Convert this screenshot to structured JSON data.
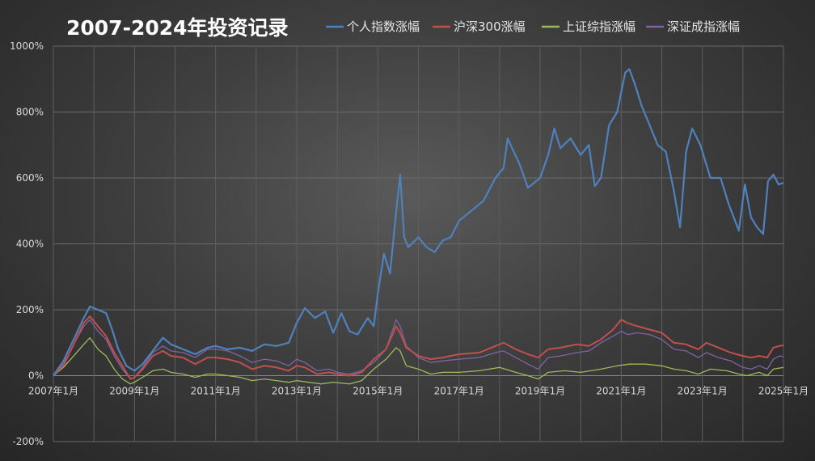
{
  "chart_data": {
    "type": "line",
    "title": "2007-2024年投资记录",
    "xlabel": "",
    "ylabel": "",
    "x_ticks": [
      "2007年1月",
      "2009年1月",
      "2011年1月",
      "2013年1月",
      "2015年1月",
      "2017年1月",
      "2019年1月",
      "2021年1月",
      "2023年1月",
      "2025年1月"
    ],
    "y_ticks": [
      "-200%",
      "0%",
      "200%",
      "400%",
      "600%",
      "800%",
      "1000%"
    ],
    "ylim": [
      -200,
      1000
    ],
    "xlim": [
      2007.0,
      2025.0
    ],
    "grid": true,
    "legend_position": "top",
    "series": [
      {
        "name": "个人指数涨幅",
        "color": "#4f81bd",
        "points": [
          [
            2007.0,
            0
          ],
          [
            2007.25,
            45
          ],
          [
            2007.5,
            110
          ],
          [
            2007.75,
            175
          ],
          [
            2007.9,
            210
          ],
          [
            2008.1,
            200
          ],
          [
            2008.3,
            190
          ],
          [
            2008.45,
            140
          ],
          [
            2008.6,
            80
          ],
          [
            2008.8,
            30
          ],
          [
            2009.0,
            15
          ],
          [
            2009.2,
            35
          ],
          [
            2009.45,
            75
          ],
          [
            2009.7,
            115
          ],
          [
            2009.9,
            95
          ],
          [
            2010.2,
            80
          ],
          [
            2010.5,
            65
          ],
          [
            2010.8,
            85
          ],
          [
            2011.0,
            90
          ],
          [
            2011.3,
            80
          ],
          [
            2011.6,
            85
          ],
          [
            2011.9,
            75
          ],
          [
            2012.2,
            95
          ],
          [
            2012.5,
            90
          ],
          [
            2012.8,
            100
          ],
          [
            2013.0,
            160
          ],
          [
            2013.2,
            205
          ],
          [
            2013.45,
            175
          ],
          [
            2013.7,
            195
          ],
          [
            2013.9,
            130
          ],
          [
            2014.1,
            190
          ],
          [
            2014.3,
            135
          ],
          [
            2014.5,
            125
          ],
          [
            2014.75,
            175
          ],
          [
            2014.9,
            150
          ],
          [
            2015.0,
            250
          ],
          [
            2015.15,
            370
          ],
          [
            2015.3,
            310
          ],
          [
            2015.45,
            495
          ],
          [
            2015.55,
            610
          ],
          [
            2015.65,
            420
          ],
          [
            2015.75,
            390
          ],
          [
            2016.0,
            420
          ],
          [
            2016.2,
            390
          ],
          [
            2016.4,
            375
          ],
          [
            2016.6,
            410
          ],
          [
            2016.8,
            420
          ],
          [
            2017.0,
            470
          ],
          [
            2017.3,
            500
          ],
          [
            2017.6,
            530
          ],
          [
            2017.9,
            600
          ],
          [
            2018.1,
            630
          ],
          [
            2018.2,
            720
          ],
          [
            2018.35,
            680
          ],
          [
            2018.5,
            640
          ],
          [
            2018.7,
            570
          ],
          [
            2019.0,
            600
          ],
          [
            2019.2,
            670
          ],
          [
            2019.35,
            750
          ],
          [
            2019.5,
            690
          ],
          [
            2019.75,
            720
          ],
          [
            2020.0,
            670
          ],
          [
            2020.2,
            700
          ],
          [
            2020.35,
            575
          ],
          [
            2020.5,
            600
          ],
          [
            2020.7,
            760
          ],
          [
            2020.9,
            800
          ],
          [
            2021.1,
            920
          ],
          [
            2021.2,
            930
          ],
          [
            2021.35,
            880
          ],
          [
            2021.5,
            820
          ],
          [
            2021.7,
            760
          ],
          [
            2021.9,
            700
          ],
          [
            2022.1,
            680
          ],
          [
            2022.3,
            560
          ],
          [
            2022.45,
            450
          ],
          [
            2022.6,
            680
          ],
          [
            2022.75,
            750
          ],
          [
            2022.95,
            700
          ],
          [
            2023.2,
            600
          ],
          [
            2023.45,
            600
          ],
          [
            2023.65,
            520
          ],
          [
            2023.9,
            440
          ],
          [
            2024.05,
            580
          ],
          [
            2024.2,
            480
          ],
          [
            2024.35,
            450
          ],
          [
            2024.5,
            430
          ],
          [
            2024.62,
            590
          ],
          [
            2024.75,
            610
          ],
          [
            2024.88,
            580
          ],
          [
            2025.0,
            585
          ]
        ]
      },
      {
        "name": "沪深300涨幅",
        "color": "#c0504d",
        "points": [
          [
            2007.0,
            0
          ],
          [
            2007.25,
            30
          ],
          [
            2007.5,
            95
          ],
          [
            2007.75,
            160
          ],
          [
            2007.9,
            180
          ],
          [
            2008.1,
            150
          ],
          [
            2008.3,
            120
          ],
          [
            2008.5,
            70
          ],
          [
            2008.7,
            30
          ],
          [
            2008.9,
            -10
          ],
          [
            2009.0,
            -5
          ],
          [
            2009.2,
            20
          ],
          [
            2009.45,
            60
          ],
          [
            2009.7,
            75
          ],
          [
            2009.9,
            60
          ],
          [
            2010.2,
            55
          ],
          [
            2010.5,
            35
          ],
          [
            2010.8,
            55
          ],
          [
            2011.0,
            55
          ],
          [
            2011.3,
            50
          ],
          [
            2011.6,
            40
          ],
          [
            2011.9,
            20
          ],
          [
            2012.2,
            30
          ],
          [
            2012.5,
            25
          ],
          [
            2012.8,
            15
          ],
          [
            2013.0,
            30
          ],
          [
            2013.2,
            25
          ],
          [
            2013.5,
            5
          ],
          [
            2013.8,
            10
          ],
          [
            2014.0,
            5
          ],
          [
            2014.3,
            0
          ],
          [
            2014.6,
            10
          ],
          [
            2014.9,
            50
          ],
          [
            2015.2,
            80
          ],
          [
            2015.45,
            150
          ],
          [
            2015.55,
            130
          ],
          [
            2015.7,
            85
          ],
          [
            2016.0,
            60
          ],
          [
            2016.3,
            50
          ],
          [
            2016.6,
            55
          ],
          [
            2017.0,
            65
          ],
          [
            2017.5,
            70
          ],
          [
            2017.9,
            90
          ],
          [
            2018.1,
            100
          ],
          [
            2018.4,
            80
          ],
          [
            2018.7,
            65
          ],
          [
            2018.95,
            55
          ],
          [
            2019.2,
            80
          ],
          [
            2019.5,
            85
          ],
          [
            2019.9,
            95
          ],
          [
            2020.2,
            90
          ],
          [
            2020.5,
            110
          ],
          [
            2020.8,
            140
          ],
          [
            2021.0,
            170
          ],
          [
            2021.15,
            160
          ],
          [
            2021.4,
            150
          ],
          [
            2021.7,
            140
          ],
          [
            2022.0,
            130
          ],
          [
            2022.3,
            100
          ],
          [
            2022.6,
            95
          ],
          [
            2022.9,
            80
          ],
          [
            2023.1,
            100
          ],
          [
            2023.4,
            85
          ],
          [
            2023.7,
            70
          ],
          [
            2024.0,
            60
          ],
          [
            2024.2,
            55
          ],
          [
            2024.4,
            60
          ],
          [
            2024.6,
            55
          ],
          [
            2024.75,
            85
          ],
          [
            2024.9,
            90
          ],
          [
            2025.0,
            92
          ]
        ]
      },
      {
        "name": "上证综指涨幅",
        "color": "#9bbb59",
        "points": [
          [
            2007.0,
            0
          ],
          [
            2007.25,
            25
          ],
          [
            2007.5,
            60
          ],
          [
            2007.75,
            95
          ],
          [
            2007.9,
            115
          ],
          [
            2008.1,
            80
          ],
          [
            2008.3,
            60
          ],
          [
            2008.5,
            20
          ],
          [
            2008.7,
            -10
          ],
          [
            2008.9,
            -25
          ],
          [
            2009.0,
            -20
          ],
          [
            2009.2,
            -5
          ],
          [
            2009.45,
            15
          ],
          [
            2009.7,
            20
          ],
          [
            2009.9,
            10
          ],
          [
            2010.2,
            5
          ],
          [
            2010.5,
            -5
          ],
          [
            2010.8,
            5
          ],
          [
            2011.0,
            5
          ],
          [
            2011.3,
            0
          ],
          [
            2011.6,
            -5
          ],
          [
            2011.9,
            -15
          ],
          [
            2012.2,
            -10
          ],
          [
            2012.5,
            -15
          ],
          [
            2012.8,
            -20
          ],
          [
            2013.0,
            -15
          ],
          [
            2013.3,
            -20
          ],
          [
            2013.6,
            -25
          ],
          [
            2013.9,
            -20
          ],
          [
            2014.3,
            -25
          ],
          [
            2014.6,
            -15
          ],
          [
            2014.9,
            20
          ],
          [
            2015.2,
            50
          ],
          [
            2015.45,
            85
          ],
          [
            2015.55,
            75
          ],
          [
            2015.7,
            30
          ],
          [
            2016.0,
            20
          ],
          [
            2016.3,
            5
          ],
          [
            2016.6,
            10
          ],
          [
            2017.0,
            10
          ],
          [
            2017.5,
            15
          ],
          [
            2018.0,
            25
          ],
          [
            2018.4,
            10
          ],
          [
            2018.7,
            0
          ],
          [
            2018.95,
            -10
          ],
          [
            2019.2,
            10
          ],
          [
            2019.6,
            15
          ],
          [
            2020.0,
            10
          ],
          [
            2020.5,
            20
          ],
          [
            2020.9,
            30
          ],
          [
            2021.2,
            35
          ],
          [
            2021.6,
            35
          ],
          [
            2022.0,
            30
          ],
          [
            2022.3,
            20
          ],
          [
            2022.6,
            15
          ],
          [
            2022.9,
            5
          ],
          [
            2023.2,
            20
          ],
          [
            2023.6,
            15
          ],
          [
            2023.9,
            5
          ],
          [
            2024.1,
            0
          ],
          [
            2024.4,
            10
          ],
          [
            2024.6,
            0
          ],
          [
            2024.75,
            20
          ],
          [
            2025.0,
            25
          ]
        ]
      },
      {
        "name": "深证成指涨幅",
        "color": "#8064a2",
        "points": [
          [
            2007.0,
            0
          ],
          [
            2007.25,
            35
          ],
          [
            2007.5,
            95
          ],
          [
            2007.75,
            150
          ],
          [
            2007.9,
            170
          ],
          [
            2008.1,
            135
          ],
          [
            2008.3,
            110
          ],
          [
            2008.5,
            60
          ],
          [
            2008.7,
            20
          ],
          [
            2008.9,
            -10
          ],
          [
            2009.0,
            -5
          ],
          [
            2009.2,
            25
          ],
          [
            2009.45,
            70
          ],
          [
            2009.7,
            90
          ],
          [
            2009.9,
            75
          ],
          [
            2010.2,
            70
          ],
          [
            2010.5,
            55
          ],
          [
            2010.8,
            80
          ],
          [
            2011.0,
            80
          ],
          [
            2011.3,
            75
          ],
          [
            2011.6,
            60
          ],
          [
            2011.9,
            40
          ],
          [
            2012.2,
            50
          ],
          [
            2012.5,
            45
          ],
          [
            2012.8,
            30
          ],
          [
            2013.0,
            50
          ],
          [
            2013.2,
            40
          ],
          [
            2013.5,
            15
          ],
          [
            2013.8,
            20
          ],
          [
            2014.0,
            10
          ],
          [
            2014.3,
            5
          ],
          [
            2014.6,
            15
          ],
          [
            2014.9,
            40
          ],
          [
            2015.2,
            80
          ],
          [
            2015.45,
            170
          ],
          [
            2015.55,
            150
          ],
          [
            2015.7,
            90
          ],
          [
            2016.0,
            55
          ],
          [
            2016.3,
            40
          ],
          [
            2016.6,
            45
          ],
          [
            2017.0,
            50
          ],
          [
            2017.5,
            55
          ],
          [
            2017.9,
            70
          ],
          [
            2018.1,
            75
          ],
          [
            2018.4,
            55
          ],
          [
            2018.7,
            35
          ],
          [
            2018.95,
            20
          ],
          [
            2019.2,
            55
          ],
          [
            2019.5,
            60
          ],
          [
            2019.9,
            70
          ],
          [
            2020.2,
            75
          ],
          [
            2020.5,
            100
          ],
          [
            2020.8,
            120
          ],
          [
            2021.0,
            135
          ],
          [
            2021.15,
            125
          ],
          [
            2021.4,
            130
          ],
          [
            2021.7,
            125
          ],
          [
            2022.0,
            110
          ],
          [
            2022.3,
            80
          ],
          [
            2022.6,
            75
          ],
          [
            2022.9,
            55
          ],
          [
            2023.1,
            70
          ],
          [
            2023.4,
            55
          ],
          [
            2023.7,
            45
          ],
          [
            2024.0,
            25
          ],
          [
            2024.2,
            20
          ],
          [
            2024.4,
            30
          ],
          [
            2024.6,
            20
          ],
          [
            2024.75,
            50
          ],
          [
            2024.9,
            60
          ],
          [
            2025.0,
            58
          ]
        ]
      }
    ]
  }
}
